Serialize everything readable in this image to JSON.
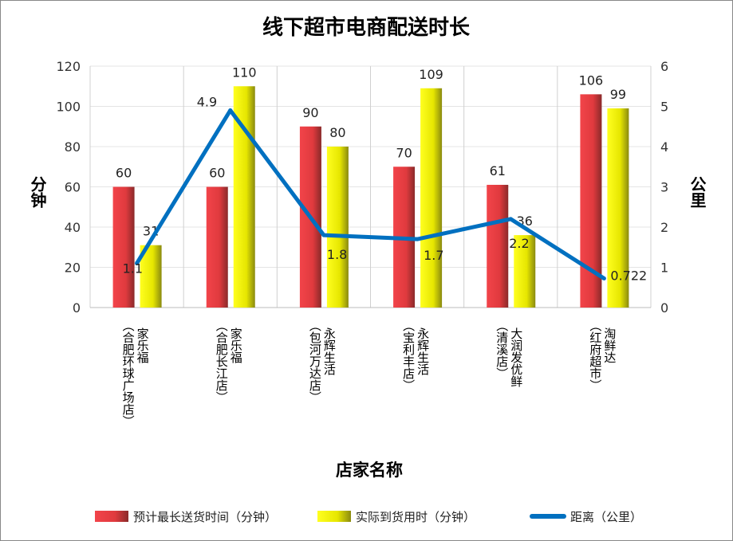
{
  "chart_data": {
    "type": "bar",
    "title": "线下超市电商配送时长",
    "xlabel": "店家名称",
    "ylabel": "分钟",
    "y2label": "公里",
    "ylim": [
      0,
      120
    ],
    "y2lim": [
      0,
      6
    ],
    "yticks": [
      "0",
      "20",
      "40",
      "60",
      "80",
      "100",
      "120"
    ],
    "y2ticks": [
      "0",
      "1",
      "2",
      "3",
      "4",
      "5",
      "6"
    ],
    "categories": [
      {
        "name": "家乐福",
        "branch": "（合肥环球广场店）"
      },
      {
        "name": "家乐福",
        "branch": "（合肥长江店）"
      },
      {
        "name": "永辉生活",
        "branch": "（包河万达店）"
      },
      {
        "name": "永辉生活",
        "branch": "（宝利丰店）"
      },
      {
        "name": "大润发优鲜",
        "branch": "（清溪店）"
      },
      {
        "name": "淘鲜达",
        "branch": "（红府超市）"
      }
    ],
    "series": [
      {
        "name": "预计最长送货时间（分钟）",
        "type": "bar",
        "axis": "left",
        "color": "#e8383d",
        "values": [
          60,
          60,
          90,
          70,
          61,
          106
        ],
        "labels": [
          "60",
          "60",
          "90",
          "70",
          "61",
          "106"
        ]
      },
      {
        "name": "实际到货用时（分钟）",
        "type": "bar",
        "axis": "left",
        "color": "#e8e800",
        "values": [
          31,
          110,
          80,
          109,
          36,
          99
        ],
        "labels": [
          "31",
          "110",
          "80",
          "109",
          "36",
          "99"
        ]
      },
      {
        "name": "距离（公里）",
        "type": "line",
        "axis": "right",
        "color": "#0070c0",
        "values": [
          1.1,
          4.9,
          1.8,
          1.7,
          2.2,
          0.722
        ],
        "labels": [
          "1.1",
          "4.9",
          "1.8",
          "1.7",
          "2.2",
          "0.722"
        ]
      }
    ],
    "grid": true,
    "legend": "bottom"
  }
}
